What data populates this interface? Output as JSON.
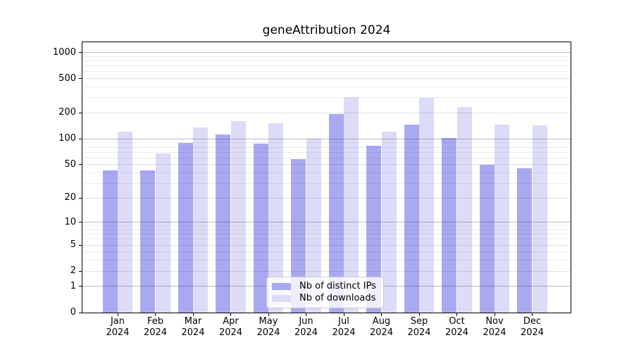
{
  "title": "geneAttribution 2024",
  "chart_data": {
    "type": "bar",
    "title": "geneAttribution 2024",
    "categories": [
      "Jan 2024",
      "Feb 2024",
      "Mar 2024",
      "Apr 2024",
      "May 2024",
      "Jun 2024",
      "Jul 2024",
      "Aug 2024",
      "Sep 2024",
      "Oct 2024",
      "Nov 2024",
      "Dec 2024"
    ],
    "series": [
      {
        "name": "Nb of distinct IPs",
        "color": "#a9a9f2",
        "values": [
          43,
          43,
          89,
          113,
          88,
          58,
          195,
          84,
          147,
          102,
          50,
          45
        ]
      },
      {
        "name": "Nb of downloads",
        "color": "#dcdcf8",
        "values": [
          122,
          68,
          136,
          162,
          152,
          100,
          303,
          121,
          297,
          235,
          147,
          145
        ]
      }
    ],
    "xlabel": "",
    "ylabel": "",
    "y_ticks": [
      0,
      1,
      2,
      5,
      10,
      20,
      50,
      100,
      200,
      500,
      1000
    ],
    "y_minor_ticks_mantissas": [
      3,
      4,
      6,
      7,
      8,
      9
    ],
    "y_scale": "log10(value+1)",
    "y_max": 1316,
    "grid": "horizontal major+minor",
    "legend_position": "lower center",
    "axis_color": "#000000",
    "grid_major_color": "#c3c3c3",
    "grid_minor_color": "#ededed"
  }
}
